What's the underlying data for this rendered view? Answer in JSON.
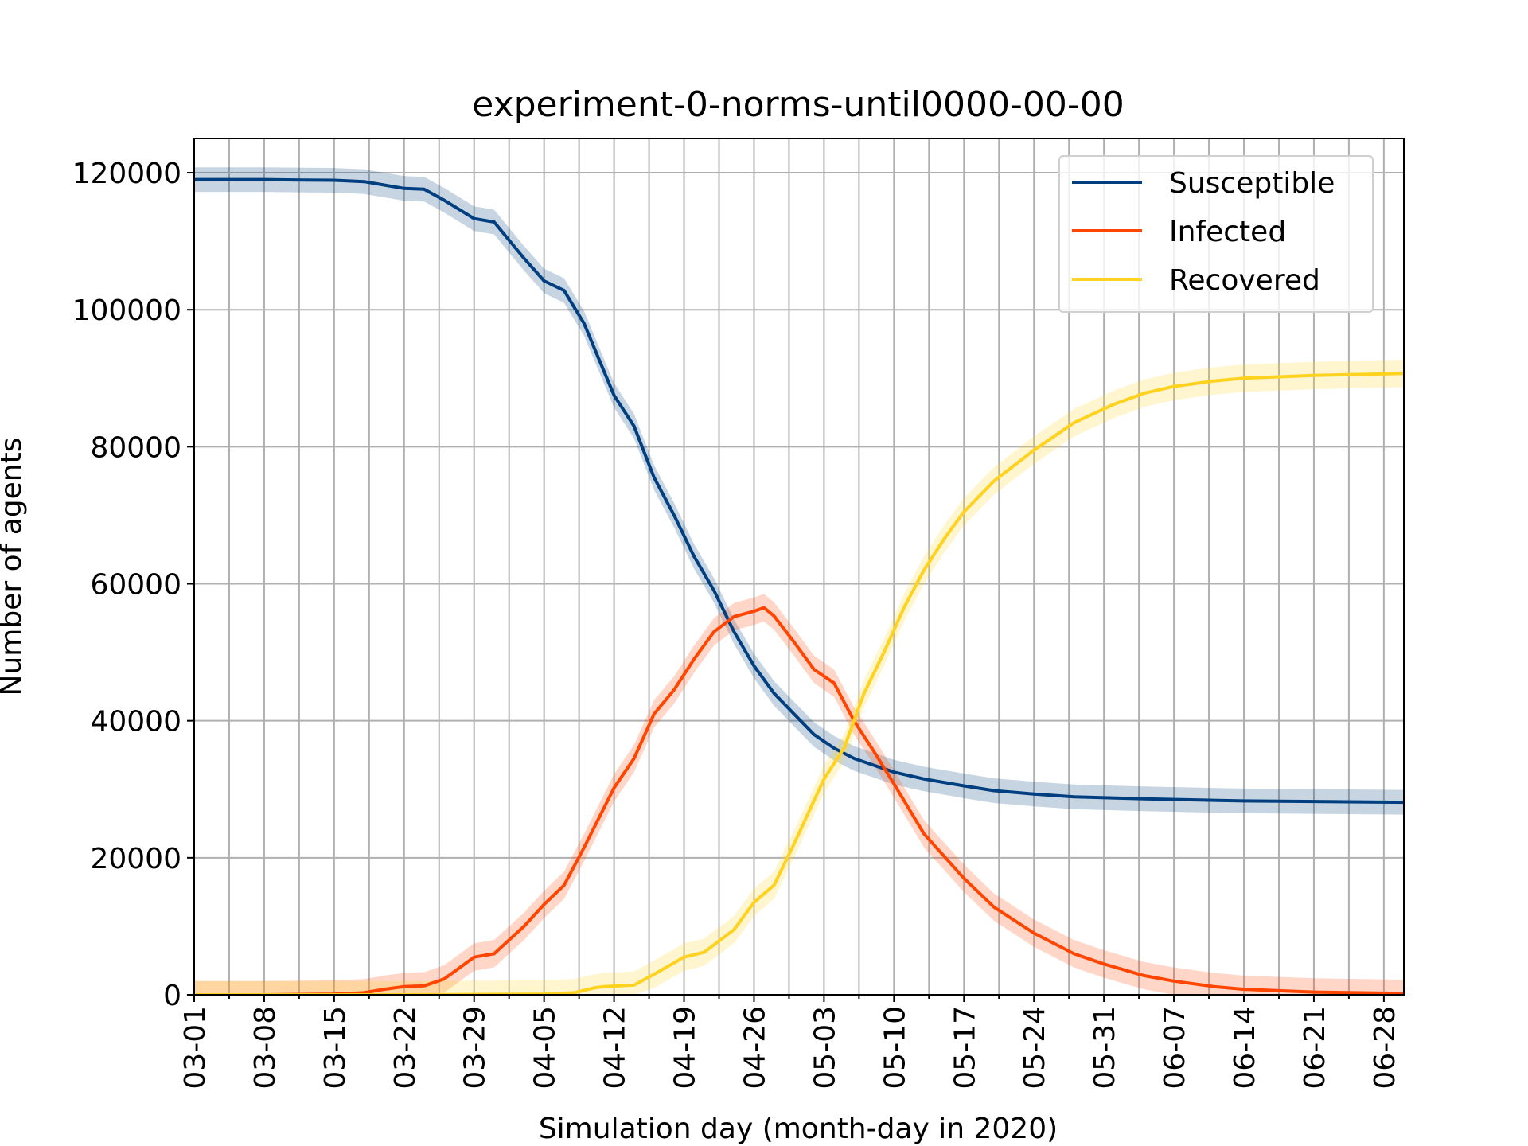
{
  "chart_data": {
    "type": "line",
    "title": "experiment-0-norms-until0000-00-00",
    "xlabel": "Simulation day (month-day in 2020)",
    "ylabel": "Number of agents",
    "x_start": "2020-03-01",
    "x_end": "2020-06-30",
    "x_ticks": [
      "03-01",
      "03-08",
      "03-15",
      "03-22",
      "03-29",
      "04-05",
      "04-12",
      "04-19",
      "04-26",
      "05-03",
      "05-10",
      "05-17",
      "05-24",
      "05-31",
      "06-07",
      "06-14",
      "06-21",
      "06-28"
    ],
    "x_minor_grid": "every 3-4 days (two per week)",
    "y_ticks": [
      0,
      20000,
      40000,
      60000,
      80000,
      100000,
      120000
    ],
    "ylim": [
      0,
      125000
    ],
    "grid": true,
    "legend_position": "top-right",
    "colors": {
      "Susceptible": "#003f7f",
      "Infected": "#ff4500",
      "Recovered": "#ffd21f"
    },
    "series": [
      {
        "name": "Susceptible",
        "points": [
          [
            "03-01",
            119000
          ],
          [
            "03-04",
            119000
          ],
          [
            "03-08",
            119000
          ],
          [
            "03-11",
            118950
          ],
          [
            "03-15",
            118900
          ],
          [
            "03-18",
            118700
          ],
          [
            "03-20",
            118200
          ],
          [
            "03-22",
            117700
          ],
          [
            "03-24",
            117600
          ],
          [
            "03-26",
            116000
          ],
          [
            "03-29",
            113300
          ],
          [
            "03-31",
            112800
          ],
          [
            "04-03",
            107500
          ],
          [
            "04-05",
            104200
          ],
          [
            "04-07",
            102800
          ],
          [
            "04-09",
            98000
          ],
          [
            "04-11",
            91000
          ],
          [
            "04-12",
            87500
          ],
          [
            "04-14",
            83000
          ],
          [
            "04-16",
            75500
          ],
          [
            "04-18",
            70000
          ],
          [
            "04-20",
            64000
          ],
          [
            "04-22",
            59000
          ],
          [
            "04-24",
            53000
          ],
          [
            "04-26",
            48000
          ],
          [
            "04-28",
            44000
          ],
          [
            "04-30",
            41000
          ],
          [
            "05-02",
            38000
          ],
          [
            "05-04",
            36000
          ],
          [
            "05-06",
            34500
          ],
          [
            "05-08",
            33500
          ],
          [
            "05-10",
            32500
          ],
          [
            "05-13",
            31500
          ],
          [
            "05-17",
            30500
          ],
          [
            "05-20",
            29800
          ],
          [
            "05-24",
            29300
          ],
          [
            "05-28",
            28900
          ],
          [
            "06-04",
            28600
          ],
          [
            "06-14",
            28300
          ],
          [
            "06-30",
            28100
          ]
        ],
        "band": 1800
      },
      {
        "name": "Infected",
        "points": [
          [
            "03-01",
            0
          ],
          [
            "03-08",
            0
          ],
          [
            "03-15",
            100
          ],
          [
            "03-18",
            300
          ],
          [
            "03-20",
            800
          ],
          [
            "03-22",
            1200
          ],
          [
            "03-24",
            1300
          ],
          [
            "03-26",
            2300
          ],
          [
            "03-29",
            5500
          ],
          [
            "03-31",
            6000
          ],
          [
            "04-03",
            10000
          ],
          [
            "04-05",
            13200
          ],
          [
            "04-07",
            16000
          ],
          [
            "04-09",
            21500
          ],
          [
            "04-12",
            30200
          ],
          [
            "04-14",
            34500
          ],
          [
            "04-16",
            41000
          ],
          [
            "04-18",
            44500
          ],
          [
            "04-20",
            49000
          ],
          [
            "04-22",
            53000
          ],
          [
            "04-24",
            55200
          ],
          [
            "04-26",
            56000
          ],
          [
            "04-27",
            56500
          ],
          [
            "04-28",
            55300
          ],
          [
            "04-30",
            51500
          ],
          [
            "05-02",
            47500
          ],
          [
            "05-04",
            45500
          ],
          [
            "05-06",
            40000
          ],
          [
            "05-08",
            35500
          ],
          [
            "05-10",
            30800
          ],
          [
            "05-13",
            23500
          ],
          [
            "05-17",
            17000
          ],
          [
            "05-20",
            12800
          ],
          [
            "05-24",
            9000
          ],
          [
            "05-28",
            6000
          ],
          [
            "05-31",
            4500
          ],
          [
            "06-04",
            2800
          ],
          [
            "06-07",
            2000
          ],
          [
            "06-11",
            1200
          ],
          [
            "06-14",
            800
          ],
          [
            "06-21",
            400
          ],
          [
            "06-30",
            200
          ]
        ],
        "band": 2000
      },
      {
        "name": "Recovered",
        "points": [
          [
            "03-01",
            0
          ],
          [
            "03-22",
            0
          ],
          [
            "04-05",
            100
          ],
          [
            "04-08",
            300
          ],
          [
            "04-10",
            1000
          ],
          [
            "04-11",
            1200
          ],
          [
            "04-14",
            1400
          ],
          [
            "04-16",
            3000
          ],
          [
            "04-19",
            5500
          ],
          [
            "04-21",
            6200
          ],
          [
            "04-24",
            9500
          ],
          [
            "04-26",
            13500
          ],
          [
            "04-28",
            16000
          ],
          [
            "04-30",
            22000
          ],
          [
            "05-03",
            31500
          ],
          [
            "05-05",
            36000
          ],
          [
            "05-07",
            44000
          ],
          [
            "05-09",
            50000
          ],
          [
            "05-11",
            56500
          ],
          [
            "05-13",
            62000
          ],
          [
            "05-15",
            66500
          ],
          [
            "05-17",
            70500
          ],
          [
            "05-20",
            75000
          ],
          [
            "05-24",
            79500
          ],
          [
            "05-28",
            83500
          ],
          [
            "06-01",
            86200
          ],
          [
            "06-04",
            87800
          ],
          [
            "06-07",
            88800
          ],
          [
            "06-11",
            89600
          ],
          [
            "06-14",
            90000
          ],
          [
            "06-21",
            90400
          ],
          [
            "06-30",
            90700
          ]
        ],
        "band": 2000
      }
    ]
  }
}
